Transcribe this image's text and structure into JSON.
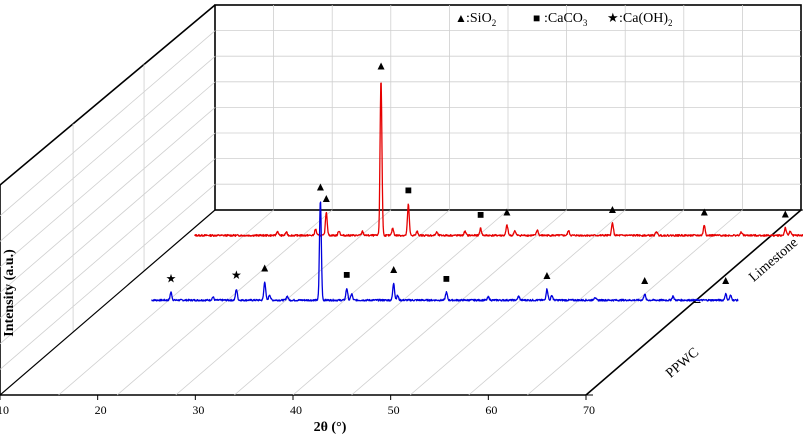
{
  "chart_data": {
    "type": "line",
    "chart_style": "3d-offset-waterfall",
    "title": "",
    "xlabel": "2θ (°)",
    "ylabel": "Intensity (a.u.)",
    "xlim": [
      10,
      70
    ],
    "x_ticks": [
      10,
      20,
      30,
      40,
      50,
      60,
      70
    ],
    "y_ticks_shown": false,
    "depth_axis_labels": [
      "PPWC",
      "Limestone"
    ],
    "grid": true,
    "legend": {
      "placement": "top-right",
      "entries": [
        {
          "marker": "▲",
          "label_main": ":SiO",
          "label_sub": "2"
        },
        {
          "marker": "■",
          "label_main": ":CaCO",
          "label_sub": "3"
        },
        {
          "marker": "★",
          "label_main": ":Ca(OH)",
          "label_sub": "2"
        }
      ]
    },
    "series": [
      {
        "name": "PPWC",
        "color": "#0000dd",
        "baseline": 3,
        "peaks": [
          {
            "x": 16.5,
            "y": 10,
            "phase": "Ca(OH)2"
          },
          {
            "x": 20.8,
            "y": 4,
            "phase": ""
          },
          {
            "x": 23.2,
            "y": 14,
            "phase": "Ca(OH)2"
          },
          {
            "x": 26.1,
            "y": 24,
            "phase": "SiO2"
          },
          {
            "x": 26.6,
            "y": 7,
            "phase": ""
          },
          {
            "x": 28.4,
            "y": 5,
            "phase": ""
          },
          {
            "x": 31.8,
            "y": 128,
            "phase": "SiO2"
          },
          {
            "x": 34.5,
            "y": 15,
            "phase": "CaCO3"
          },
          {
            "x": 35.0,
            "y": 8,
            "phase": ""
          },
          {
            "x": 39.3,
            "y": 22,
            "phase": "SiO2"
          },
          {
            "x": 39.7,
            "y": 6,
            "phase": ""
          },
          {
            "x": 44.7,
            "y": 10,
            "phase": "CaCO3"
          },
          {
            "x": 49.0,
            "y": 4,
            "phase": ""
          },
          {
            "x": 52.1,
            "y": 5,
            "phase": ""
          },
          {
            "x": 55.0,
            "y": 14,
            "phase": "SiO2"
          },
          {
            "x": 55.5,
            "y": 6,
            "phase": ""
          },
          {
            "x": 59.9,
            "y": 4,
            "phase": ""
          },
          {
            "x": 65.0,
            "y": 8,
            "phase": "SiO2"
          },
          {
            "x": 67.9,
            "y": 5,
            "phase": ""
          },
          {
            "x": 73.3,
            "y": 8,
            "phase": "SiO2"
          },
          {
            "x": 73.8,
            "y": 6,
            "phase": ""
          }
        ]
      },
      {
        "name": "Limestone",
        "color": "#e60000",
        "baseline": 3,
        "peaks": [
          {
            "x": 19.7,
            "y": 5,
            "phase": ""
          },
          {
            "x": 20.6,
            "y": 4,
            "phase": ""
          },
          {
            "x": 23.6,
            "y": 8,
            "phase": ""
          },
          {
            "x": 24.7,
            "y": 30,
            "phase": "SiO2"
          },
          {
            "x": 26.0,
            "y": 6,
            "phase": ""
          },
          {
            "x": 28.4,
            "y": 5,
            "phase": ""
          },
          {
            "x": 30.3,
            "y": 200,
            "phase": "SiO2"
          },
          {
            "x": 31.5,
            "y": 9,
            "phase": ""
          },
          {
            "x": 33.1,
            "y": 40,
            "phase": "CaCO3"
          },
          {
            "x": 34.0,
            "y": 5,
            "phase": ""
          },
          {
            "x": 36.0,
            "y": 4,
            "phase": ""
          },
          {
            "x": 38.9,
            "y": 5,
            "phase": ""
          },
          {
            "x": 40.5,
            "y": 9,
            "phase": "CaCO3"
          },
          {
            "x": 43.2,
            "y": 13,
            "phase": "SiO2"
          },
          {
            "x": 44.0,
            "y": 6,
            "phase": ""
          },
          {
            "x": 46.3,
            "y": 7,
            "phase": ""
          },
          {
            "x": 49.5,
            "y": 6,
            "phase": ""
          },
          {
            "x": 54.0,
            "y": 16,
            "phase": "SiO2"
          },
          {
            "x": 58.5,
            "y": 5,
            "phase": ""
          },
          {
            "x": 63.4,
            "y": 13,
            "phase": "SiO2"
          },
          {
            "x": 67.2,
            "y": 4,
            "phase": ""
          },
          {
            "x": 71.7,
            "y": 10,
            "phase": "SiO2"
          },
          {
            "x": 72.2,
            "y": 6,
            "phase": ""
          }
        ]
      }
    ]
  }
}
